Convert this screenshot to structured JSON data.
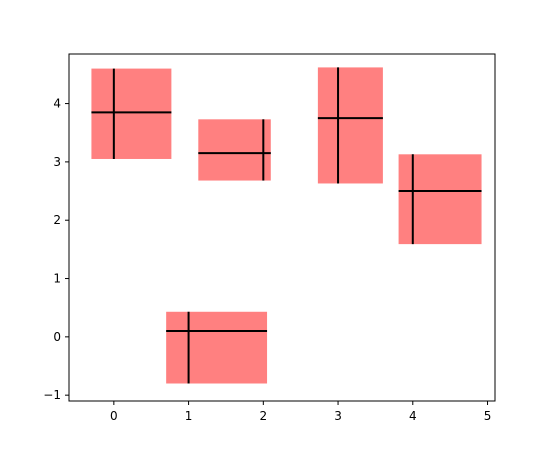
{
  "chart_data": {
    "type": "errorbar",
    "title": "",
    "xlabel": "",
    "ylabel": "",
    "xlim": [
      -0.6,
      5.1
    ],
    "ylim": [
      -1.1,
      4.85
    ],
    "xticks": [
      0,
      1,
      2,
      3,
      4,
      5
    ],
    "yticks": [
      -1,
      0,
      1,
      2,
      3,
      4
    ],
    "grid": false,
    "legend": "none",
    "box_color": "#ff8080",
    "errorbar_color": "#000000",
    "series": [
      {
        "points": [
          {
            "x": 0.0,
            "y": 3.85,
            "xerr": [
              0.3,
              0.77
            ],
            "yerr": [
              0.8,
              0.75
            ]
          },
          {
            "x": 1.0,
            "y": 0.1,
            "xerr": [
              0.3,
              1.05
            ],
            "yerr": [
              0.9,
              0.33
            ]
          },
          {
            "x": 2.0,
            "y": 3.15,
            "xerr": [
              0.87,
              0.1
            ],
            "yerr": [
              0.47,
              0.58
            ]
          },
          {
            "x": 3.0,
            "y": 3.75,
            "xerr": [
              0.27,
              0.6
            ],
            "yerr": [
              1.12,
              0.87
            ]
          },
          {
            "x": 4.0,
            "y": 2.5,
            "xerr": [
              0.19,
              0.92
            ],
            "yerr": [
              0.91,
              0.63
            ]
          }
        ]
      }
    ]
  }
}
